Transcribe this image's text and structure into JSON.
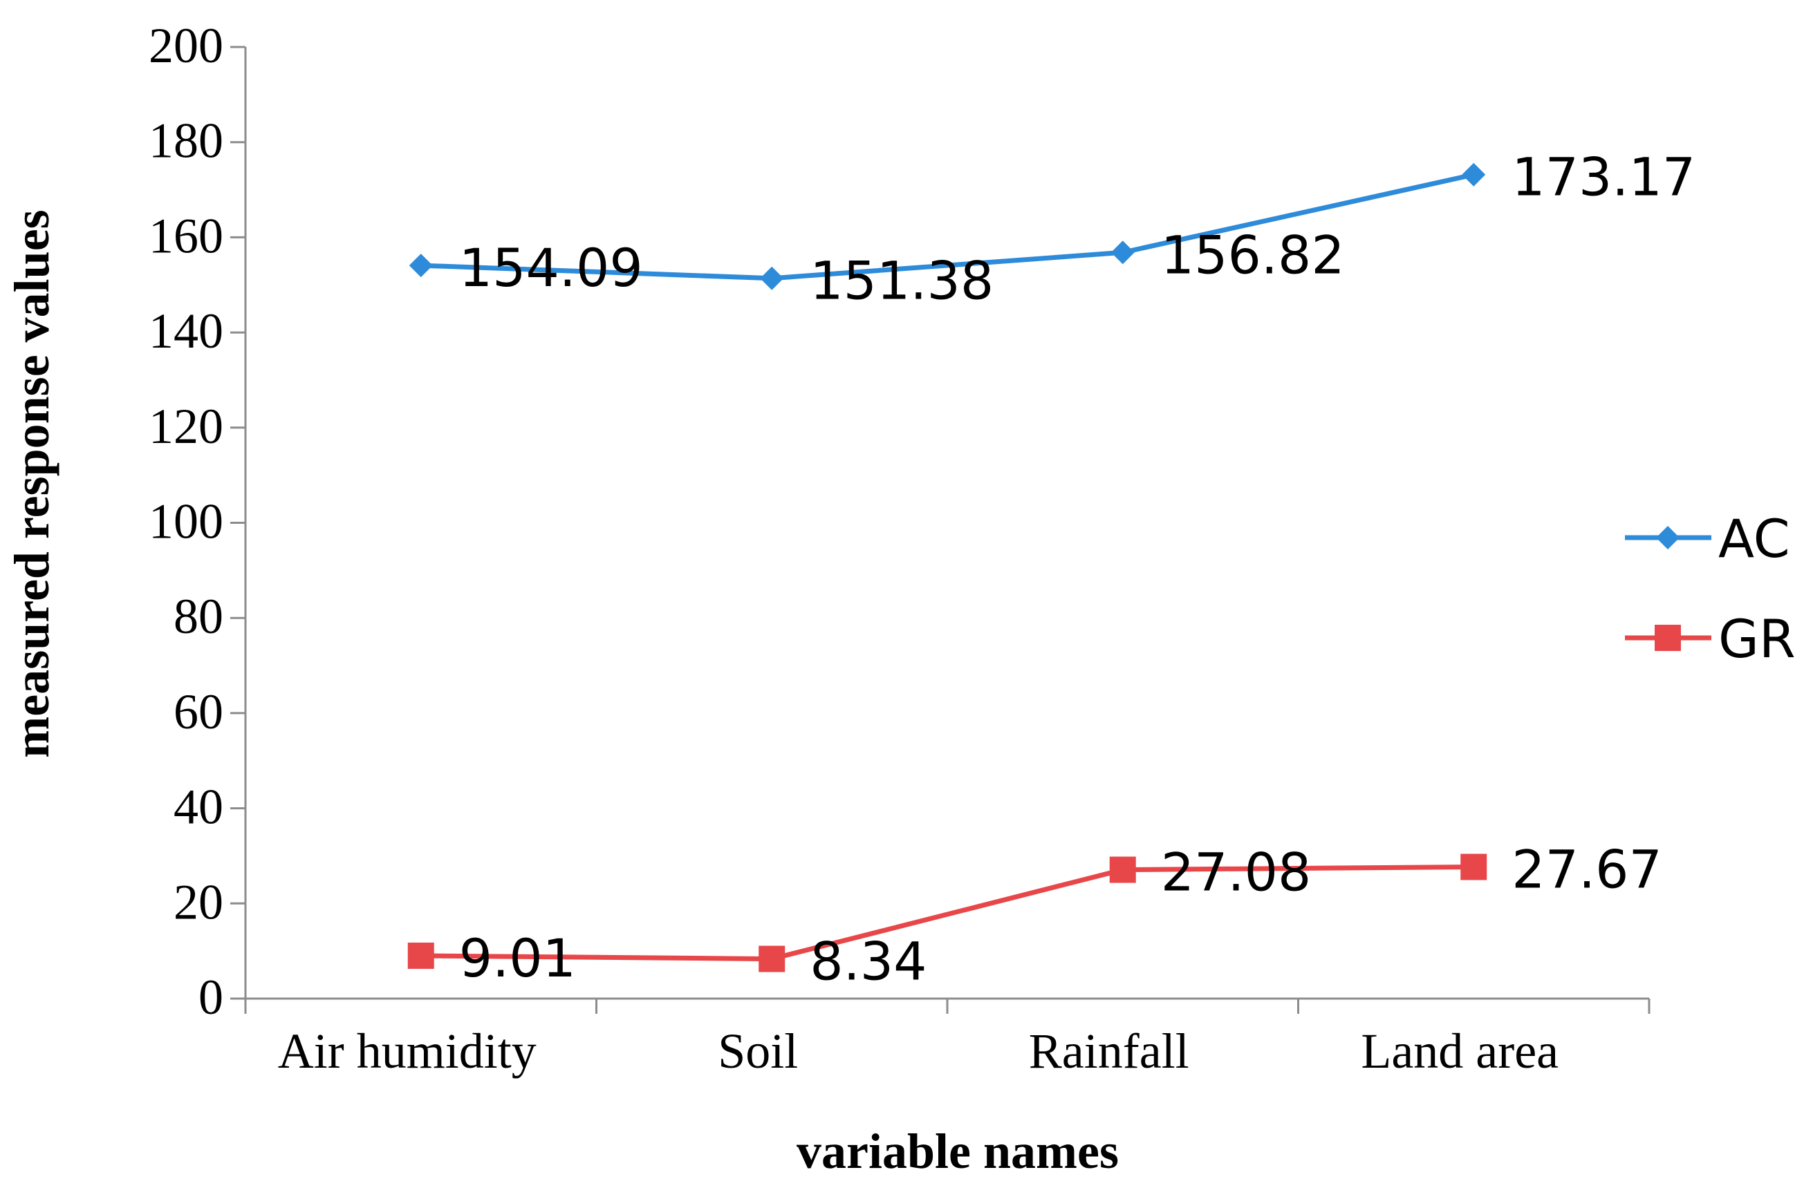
{
  "chart_data": {
    "type": "line",
    "categories": [
      "Air humidity",
      "Soil",
      "Rainfall",
      "Land area"
    ],
    "series": [
      {
        "name": "AC",
        "values": [
          154.09,
          151.38,
          156.82,
          173.17
        ],
        "labels": [
          "154.09",
          "151.38",
          "156.82",
          "173.17"
        ],
        "color": "#2E8BD9",
        "marker": "diamond"
      },
      {
        "name": "GR",
        "values": [
          9.01,
          8.34,
          27.08,
          27.67
        ],
        "labels": [
          "9.01",
          "8.34",
          "27.08",
          "27.67"
        ],
        "color": "#E8474A",
        "marker": "square"
      }
    ],
    "title": "",
    "xlabel": "variable names",
    "ylabel": "measured response values",
    "ylim": [
      0,
      200
    ],
    "yticks": [
      0,
      20,
      40,
      60,
      80,
      100,
      120,
      140,
      160,
      180,
      200
    ],
    "grid": false,
    "legend_position": "right"
  }
}
